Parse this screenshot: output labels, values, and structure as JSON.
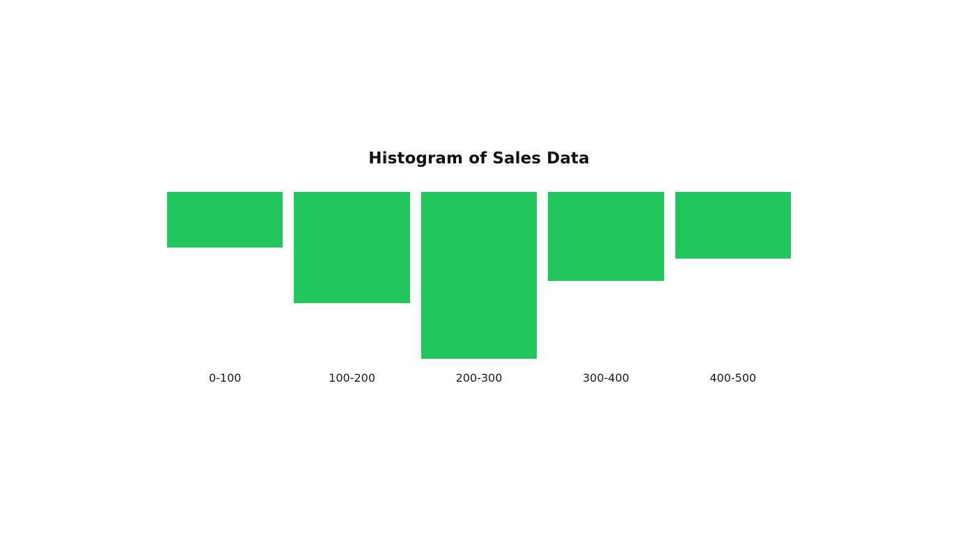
{
  "chart_data": {
    "type": "bar",
    "title": "Histogram of Sales Data",
    "categories": [
      "0-100",
      "100-200",
      "200-300",
      "300-400",
      "400-500"
    ],
    "values": [
      5,
      10,
      15,
      8,
      6
    ],
    "ylim": [
      0,
      15
    ],
    "orientation": "bars hang downward from a common top baseline",
    "bar_color": "#22c55e",
    "grid": false,
    "legend": "none"
  }
}
